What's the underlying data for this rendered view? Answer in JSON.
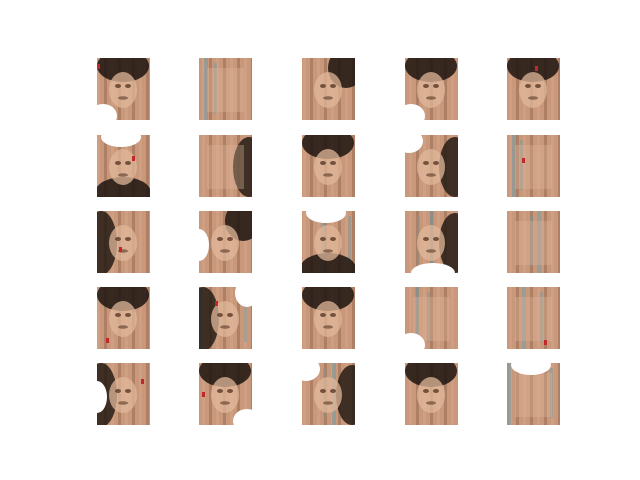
{
  "figure": {
    "rows": 5,
    "cols": 5,
    "background": "#ffffff",
    "palette": {
      "skin": "#c9977a",
      "skin_light": "#e0b79a",
      "dark": "#1c140f",
      "shadow": "#5a3a28",
      "white": "#ffffff",
      "teal": "#6f9aa6",
      "red": "#c0282a"
    },
    "tiles": [
      {
        "id": "r1c1",
        "hair": "top",
        "face": "center",
        "white": "bottom-left",
        "teal": false,
        "red": true
      },
      {
        "id": "r1c2",
        "hair": "none",
        "face": "full",
        "white": "none",
        "teal": true,
        "red": false
      },
      {
        "id": "r1c3",
        "hair": "top-right",
        "face": "center",
        "white": "none",
        "teal": false,
        "red": false
      },
      {
        "id": "r1c4",
        "hair": "top",
        "face": "center",
        "white": "bottom-left",
        "teal": false,
        "red": false
      },
      {
        "id": "r1c5",
        "hair": "top",
        "face": "center",
        "white": "none",
        "teal": false,
        "red": true
      },
      {
        "id": "r2c1",
        "hair": "bottom",
        "face": "center",
        "white": "top",
        "teal": false,
        "red": true
      },
      {
        "id": "r2c2",
        "hair": "right",
        "face": "full",
        "white": "none",
        "teal": false,
        "red": false
      },
      {
        "id": "r2c3",
        "hair": "top",
        "face": "center",
        "white": "none",
        "teal": false,
        "red": false
      },
      {
        "id": "r2c4",
        "hair": "right",
        "face": "center",
        "white": "top-left",
        "teal": false,
        "red": false
      },
      {
        "id": "r2c5",
        "hair": "none",
        "face": "full",
        "white": "none",
        "teal": true,
        "red": true
      },
      {
        "id": "r3c1",
        "hair": "left",
        "face": "center",
        "white": "none",
        "teal": false,
        "red": true
      },
      {
        "id": "r3c2",
        "hair": "top-right",
        "face": "center",
        "white": "left",
        "teal": false,
        "red": false
      },
      {
        "id": "r3c3",
        "hair": "bottom",
        "face": "center",
        "white": "top",
        "teal": true,
        "red": false
      },
      {
        "id": "r3c4",
        "hair": "right",
        "face": "center",
        "white": "bottom",
        "teal": true,
        "red": false
      },
      {
        "id": "r3c5",
        "hair": "none",
        "face": "full",
        "white": "none",
        "teal": true,
        "red": false
      },
      {
        "id": "r4c1",
        "hair": "top",
        "face": "center",
        "white": "none",
        "teal": false,
        "red": true
      },
      {
        "id": "r4c2",
        "hair": "left",
        "face": "center",
        "white": "top-right",
        "teal": true,
        "red": true
      },
      {
        "id": "r4c3",
        "hair": "top",
        "face": "center",
        "white": "none",
        "teal": false,
        "red": false
      },
      {
        "id": "r4c4",
        "hair": "none",
        "face": "full",
        "white": "bottom-left",
        "teal": true,
        "red": false
      },
      {
        "id": "r4c5",
        "hair": "none",
        "face": "full",
        "white": "none",
        "teal": true,
        "red": true
      },
      {
        "id": "r5c1",
        "hair": "left",
        "face": "center",
        "white": "left",
        "teal": false,
        "red": true
      },
      {
        "id": "r5c2",
        "hair": "top",
        "face": "center",
        "white": "bottom-right",
        "teal": false,
        "red": true
      },
      {
        "id": "r5c3",
        "hair": "right",
        "face": "center",
        "white": "top-left",
        "teal": true,
        "red": false
      },
      {
        "id": "r5c4",
        "hair": "top",
        "face": "center",
        "white": "none",
        "teal": false,
        "red": false
      },
      {
        "id": "r5c5",
        "hair": "none",
        "face": "full",
        "white": "top",
        "teal": true,
        "red": false
      }
    ]
  }
}
